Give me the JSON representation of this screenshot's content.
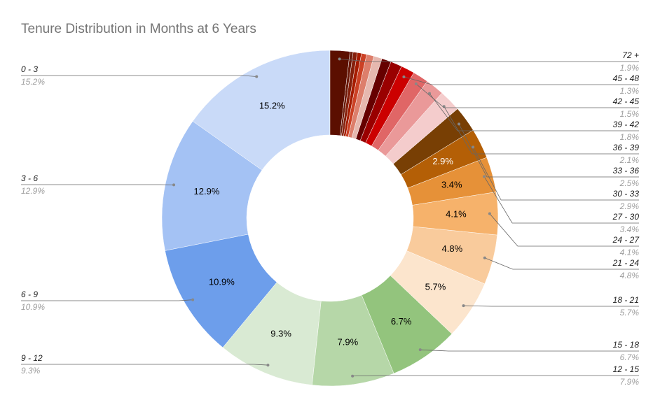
{
  "chart_data": {
    "type": "donut",
    "title": "Tenure Distribution in Months at 6 Years",
    "categories": [
      "0 - 3",
      "3 - 6",
      "6 - 9",
      "9 - 12",
      "12 - 15",
      "15 - 18",
      "18 - 21",
      "21 - 24",
      "24 - 27",
      "27 - 30",
      "30 - 33",
      "33 - 36",
      "36 - 39",
      "39 - 42",
      "42 - 45",
      "45 - 48",
      null,
      null,
      null,
      null,
      null,
      null,
      null,
      null,
      "72 +"
    ],
    "values": [
      15.2,
      12.9,
      10.9,
      9.3,
      7.9,
      6.7,
      5.7,
      4.8,
      4.1,
      3.4,
      2.9,
      2.5,
      2.1,
      1.8,
      1.5,
      1.3,
      1.1,
      0.9,
      0.8,
      0.7,
      0.5,
      0.4,
      0.4,
      0.3,
      1.9
    ],
    "value_labels": [
      "15.2%",
      "12.9%",
      "10.9%",
      "9.3%",
      "7.9%",
      "6.7%",
      "5.7%",
      "4.8%",
      "4.1%",
      "3.4%",
      "2.9%",
      "2.5%",
      "2.1%",
      "1.8%",
      "1.5%",
      "1.3%",
      null,
      null,
      null,
      null,
      null,
      null,
      null,
      null,
      "1.9%"
    ],
    "colors": [
      "#c9daf8",
      "#a4c2f4",
      "#6d9eeb",
      "#d9ead3",
      "#b6d7a8",
      "#93c47d",
      "#fce5cd",
      "#f9cb9c",
      "#f6b26b",
      "#e69138",
      "#b45f06",
      "#783f04",
      "#f4cccc",
      "#ea9999",
      "#e06666",
      "#cc0000",
      "#990000",
      "#660000",
      "#e6b8af",
      "#dd7e6b",
      "#cc4125",
      "#a61c00",
      "#85200c",
      "#6b1a0a",
      "#5b0f00"
    ]
  }
}
